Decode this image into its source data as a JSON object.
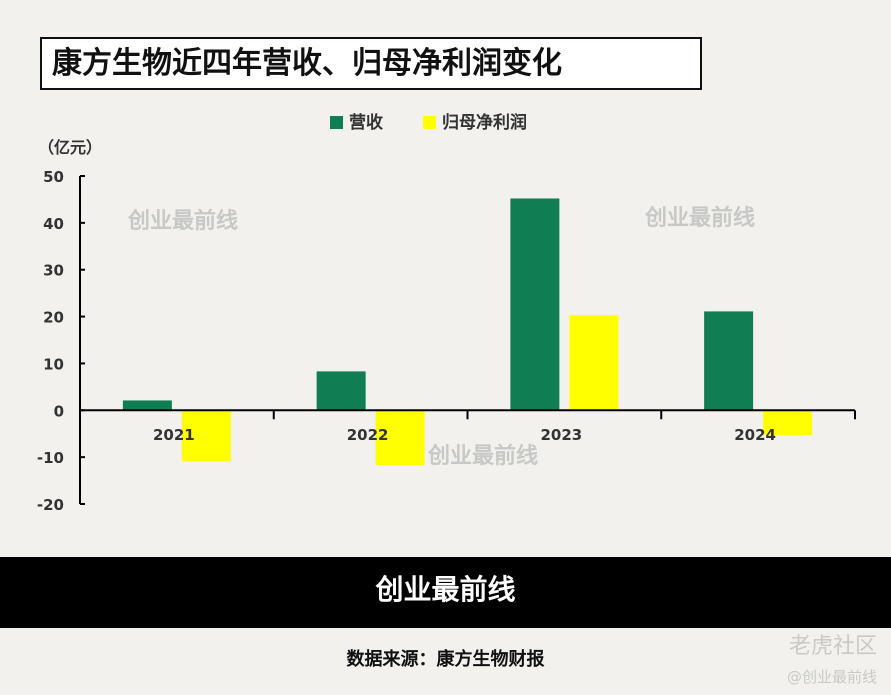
{
  "title": "康方生物近四年营收、归母净利润变化",
  "unit": "（亿元）",
  "watermark": "创业最前线",
  "band_logo": "创业最前线",
  "source": "数据来源：康方生物财报",
  "corner": {
    "brand": "老虎社区",
    "handle": "@创业最前线"
  },
  "chart_data": {
    "type": "bar",
    "categories": [
      "2021",
      "2022",
      "2023",
      "2024"
    ],
    "series": [
      {
        "name": "营收",
        "color": "#107e52",
        "values": [
          2.1,
          8.3,
          45.2,
          21.1
        ]
      },
      {
        "name": "归母净利润",
        "color": "#ffff00",
        "values": [
          -10.9,
          -11.7,
          20.3,
          -5.3
        ]
      }
    ],
    "ylim": [
      -20,
      50
    ],
    "yticks": [
      "-20",
      "-10",
      "0",
      "10",
      "20",
      "30",
      "40",
      "50"
    ],
    "legend": "top",
    "grid": false
  }
}
